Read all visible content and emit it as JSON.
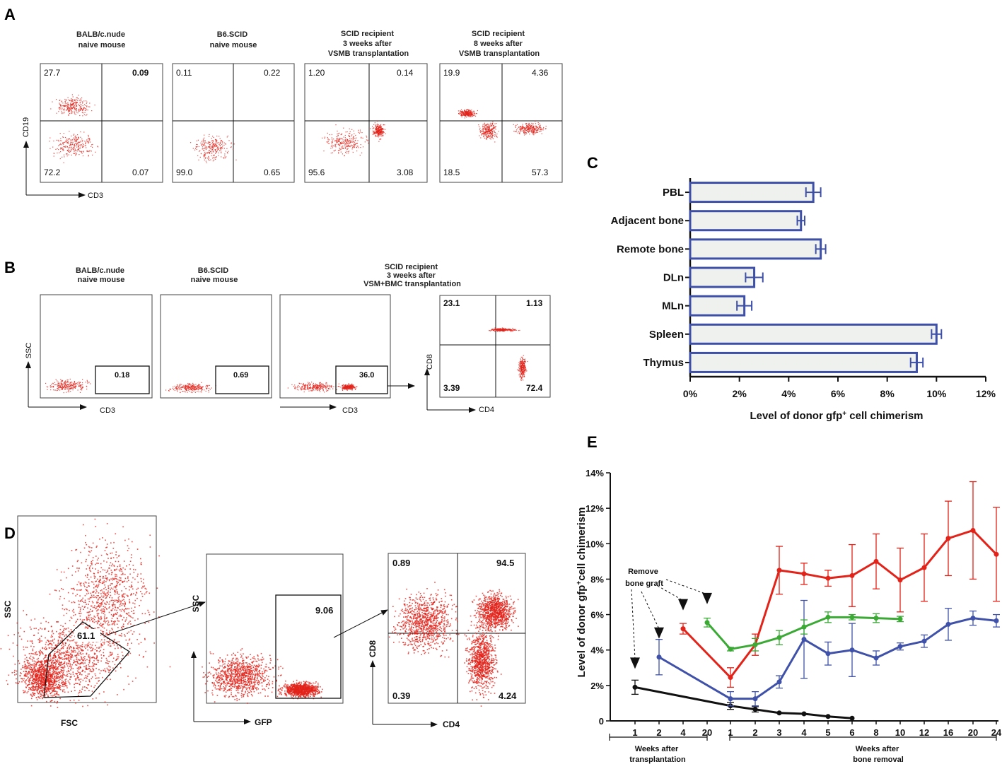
{
  "panels": {
    "A": {
      "label": "A",
      "plots": [
        {
          "title": [
            "BALB/c.nude",
            "naive mouse"
          ],
          "ul": "27.7",
          "ur": "0.09",
          "ll": "72.2",
          "lr": "0.07"
        },
        {
          "title": [
            "B6.SCID",
            "naive mouse"
          ],
          "ul": "0.11",
          "ur": "0.22",
          "ll": "99.0",
          "lr": "0.65"
        },
        {
          "title": [
            "SCID recipient",
            "3 weeks after",
            "VSMB transplantation"
          ],
          "ul": "1.20",
          "ur": "0.14",
          "ll": "95.6",
          "lr": "3.08"
        },
        {
          "title": [
            "SCID recipient",
            "8 weeks after",
            "VSMB transplantation"
          ],
          "ul": "19.9",
          "ur": "4.36",
          "ll": "18.5",
          "lr": "57.3"
        }
      ],
      "y_axis": "CD19",
      "x_axis": "CD3"
    },
    "B": {
      "label": "B",
      "plots": [
        {
          "title": [
            "BALB/c.nude",
            "naive mouse"
          ],
          "gate": "0.18"
        },
        {
          "title": [
            "B6.SCID",
            "naive mouse"
          ],
          "gate": "0.69"
        },
        {
          "title": [
            "SCID recipient",
            "3 weeks after",
            "VSM+BMC transplantation"
          ],
          "gate": "36.0"
        }
      ],
      "quad": {
        "ul": "23.1",
        "ur": "1.13",
        "ll": "3.39",
        "lr": "72.4"
      },
      "y_axis": "SSC",
      "x_axis": "CD3",
      "quad_y": "CD8",
      "quad_x": "CD4"
    },
    "D": {
      "label": "D",
      "fsc_gate": "61.1",
      "gfp_gate": "9.06",
      "quad": {
        "ul": "0.89",
        "ur": "94.5",
        "ll": "0.39",
        "lr": "4.24"
      },
      "ssc_label": "SSC",
      "fsc_label": "FSC",
      "gfp_label": "GFP",
      "cd8_label": "CD8",
      "cd4_label": "CD4"
    }
  },
  "chart_data": [
    {
      "panel": "C",
      "type": "bar",
      "orientation": "horizontal",
      "categories": [
        "PBL",
        "Adjacent bone",
        "Remote bone",
        "DLn",
        "MLn",
        "Spleen",
        "Thymus"
      ],
      "values": [
        5.0,
        4.5,
        5.3,
        2.6,
        2.2,
        10.0,
        9.2
      ],
      "errors": [
        0.3,
        0.15,
        0.2,
        0.35,
        0.3,
        0.2,
        0.25
      ],
      "xlim": [
        0,
        12
      ],
      "ticks": [
        "0%",
        "2%",
        "4%",
        "6%",
        "8%",
        "10%",
        "12%"
      ],
      "xlabel": "Level of donor gfp⁺ cell chimerism",
      "bar_color": "#eef1ee",
      "edge_color": "#3d4fa7"
    },
    {
      "panel": "E",
      "type": "line",
      "x_categories": [
        "1",
        "2",
        "4",
        "20",
        "1",
        "2",
        "3",
        "4",
        "5",
        "6",
        "8",
        "10",
        "12",
        "16",
        "20",
        "24"
      ],
      "ylim": [
        0,
        14
      ],
      "yticks": [
        "0",
        "2%",
        "4%",
        "6%",
        "8%",
        "10%",
        "12%",
        "14%"
      ],
      "ylabel": "Level of donor gfp⁺ cell chimerism",
      "group_labels": [
        [
          "Weeks after",
          "transplantation"
        ],
        [
          "Weeks after",
          "bone removal"
        ]
      ],
      "annotation": [
        "Remove",
        "bone graft"
      ],
      "arrows_at": [
        0,
        1,
        2,
        3
      ],
      "series": [
        {
          "name": "black",
          "color": "#111111",
          "x": [
            0,
            4,
            5,
            6,
            7,
            8,
            9
          ],
          "values": [
            1.9,
            0.85,
            0.65,
            0.45,
            0.4,
            0.25,
            0.15
          ],
          "errors": [
            0.4,
            0.2,
            0.15,
            0,
            0,
            0,
            0
          ]
        },
        {
          "name": "blue",
          "color": "#3f51a8",
          "x": [
            1,
            4,
            5,
            6,
            7,
            8,
            9,
            10,
            11,
            12,
            13,
            14,
            15
          ],
          "values": [
            3.6,
            1.25,
            1.25,
            2.2,
            4.6,
            3.8,
            4.0,
            3.55,
            4.2,
            4.5,
            5.45,
            5.8,
            5.65
          ],
          "errors": [
            1.0,
            0.4,
            0.4,
            0.35,
            2.2,
            0.65,
            1.5,
            0.4,
            0.2,
            0.35,
            0.9,
            0.4,
            0.35
          ]
        },
        {
          "name": "red",
          "color": "#e2231a",
          "x": [
            2,
            4,
            5,
            6,
            7,
            8,
            9,
            10,
            11,
            12,
            13,
            14,
            15
          ],
          "values": [
            5.2,
            2.45,
            4.3,
            8.5,
            8.3,
            8.05,
            8.2,
            9.0,
            7.95,
            8.65,
            10.3,
            10.75,
            9.4
          ],
          "errors": [
            0.3,
            0.55,
            0.6,
            1.35,
            0.6,
            0.45,
            1.75,
            1.55,
            1.8,
            1.9,
            2.1,
            2.75,
            2.65
          ]
        },
        {
          "name": "green",
          "color": "#3aaa35",
          "x": [
            3,
            4,
            5,
            6,
            7,
            8,
            9,
            10,
            11
          ],
          "values": [
            5.55,
            4.05,
            4.3,
            4.7,
            5.3,
            5.85,
            5.85,
            5.8,
            5.75
          ],
          "errors": [
            0.25,
            0.1,
            0.35,
            0.4,
            0.4,
            0.3,
            0.15,
            0.25,
            0.15
          ]
        }
      ]
    }
  ],
  "panel_c_label": "C",
  "panel_e_label": "E"
}
